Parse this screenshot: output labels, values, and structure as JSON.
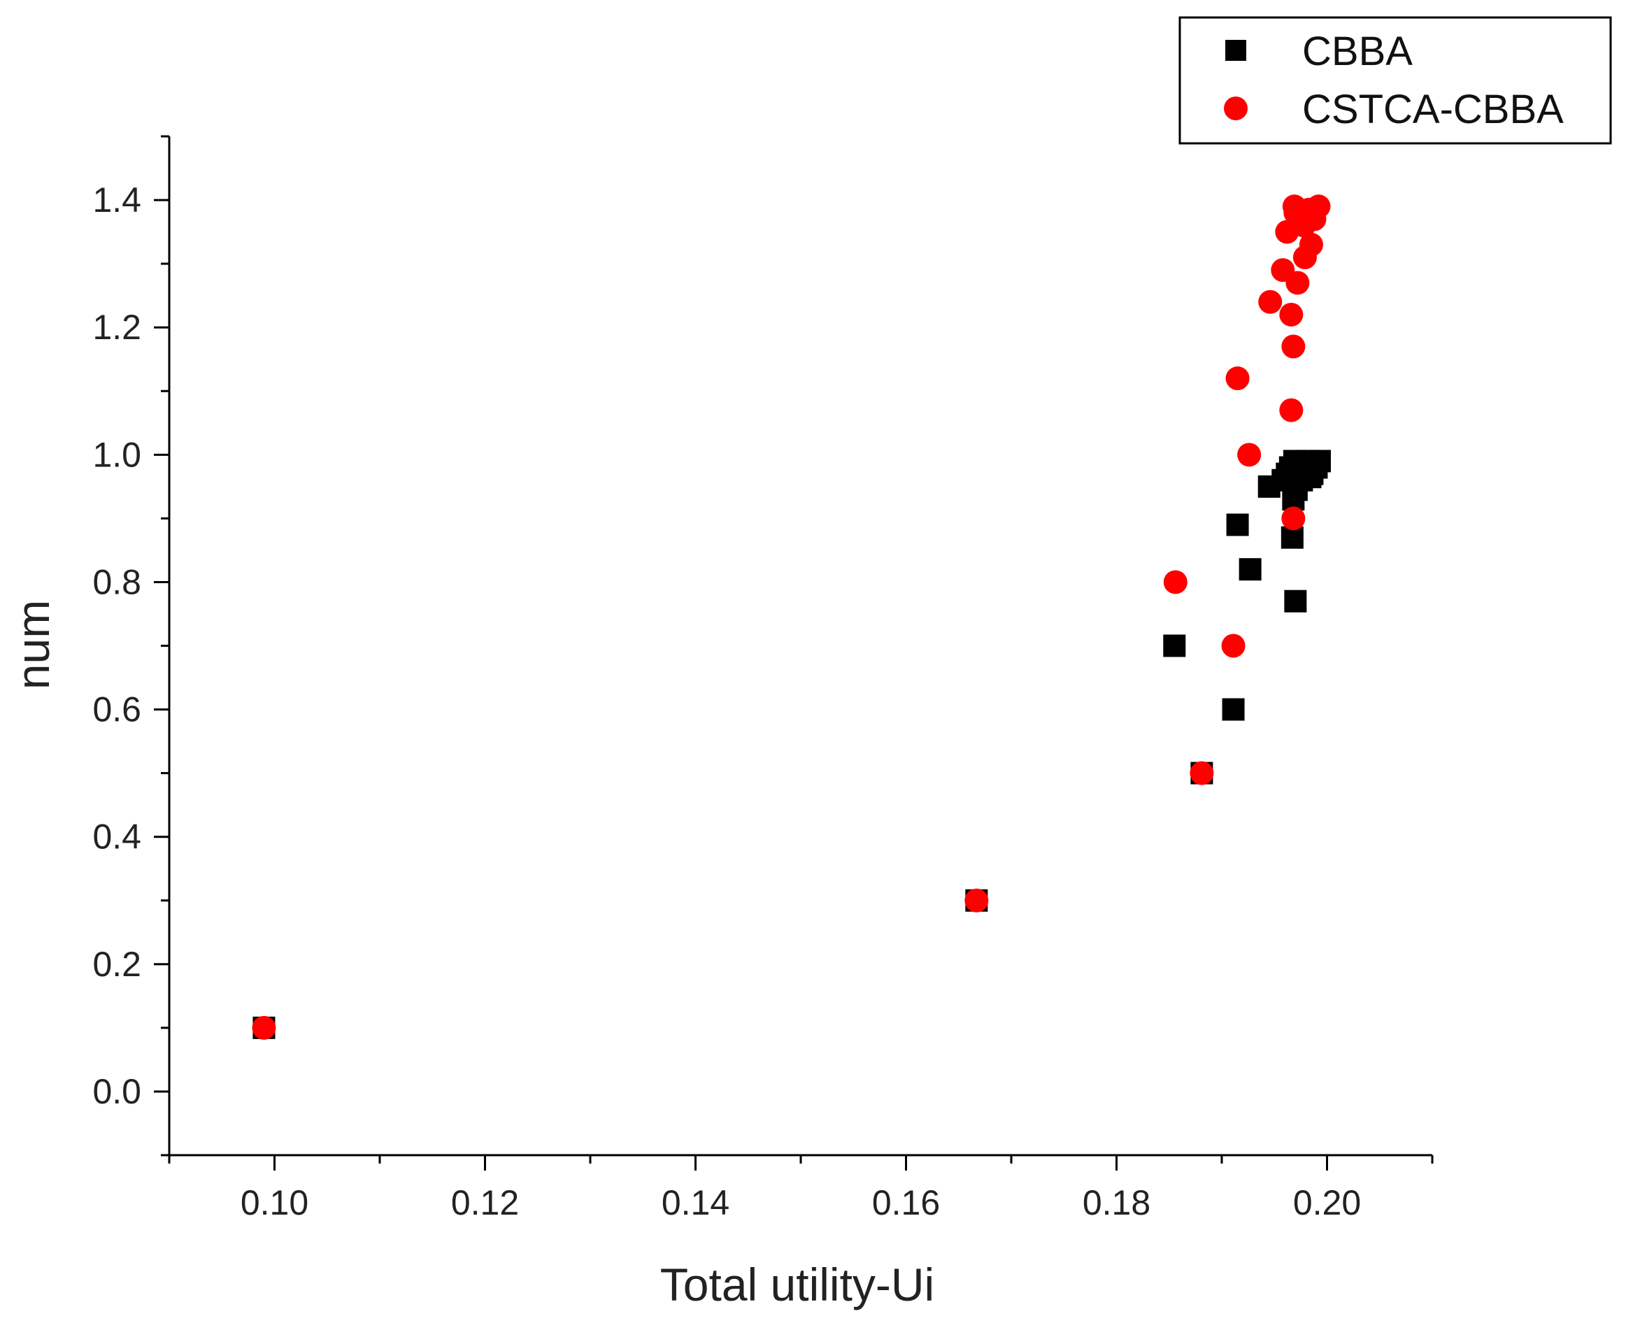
{
  "chart_data": {
    "type": "scatter",
    "title": "",
    "xlabel": "Total utility-Ui",
    "ylabel": "num",
    "xlim": [
      0.09,
      0.21
    ],
    "ylim": [
      -0.1,
      1.5
    ],
    "x_ticks": [
      "0.10",
      "0.12",
      "0.14",
      "0.16",
      "0.18",
      "0.20"
    ],
    "y_ticks": [
      "0.0",
      "0.2",
      "0.4",
      "0.6",
      "0.8",
      "1.0",
      "1.2",
      "1.4"
    ],
    "legend_position": "top-right",
    "grid": false,
    "series": [
      {
        "name": "CBBA",
        "marker": "square",
        "color": "#000000",
        "points": [
          [
            0.099,
            0.1
          ],
          [
            0.1667,
            0.3
          ],
          [
            0.1881,
            0.5
          ],
          [
            0.1911,
            0.6
          ],
          [
            0.1855,
            0.7
          ],
          [
            0.197,
            0.77
          ],
          [
            0.1927,
            0.82
          ],
          [
            0.1967,
            0.87
          ],
          [
            0.1915,
            0.89
          ],
          [
            0.1945,
            0.95
          ],
          [
            0.1958,
            0.96
          ],
          [
            0.1962,
            0.97
          ],
          [
            0.1965,
            0.98
          ],
          [
            0.1969,
            0.99
          ],
          [
            0.1973,
            0.975
          ],
          [
            0.1978,
            0.985
          ],
          [
            0.1982,
            0.99
          ],
          [
            0.1986,
            0.97
          ],
          [
            0.199,
            0.98
          ],
          [
            0.1993,
            0.99
          ],
          [
            0.1968,
            0.93
          ],
          [
            0.1971,
            0.945
          ],
          [
            0.1976,
            0.96
          ],
          [
            0.1984,
            0.965
          ]
        ]
      },
      {
        "name": "CSTCA-CBBA",
        "marker": "circle",
        "color": "#ff0000",
        "points": [
          [
            0.099,
            0.1
          ],
          [
            0.1667,
            0.3
          ],
          [
            0.1881,
            0.5
          ],
          [
            0.1911,
            0.7
          ],
          [
            0.1856,
            0.8
          ],
          [
            0.1968,
            0.9
          ],
          [
            0.1926,
            1.0
          ],
          [
            0.1966,
            1.07
          ],
          [
            0.1915,
            1.12
          ],
          [
            0.1968,
            1.17
          ],
          [
            0.1966,
            1.22
          ],
          [
            0.1946,
            1.24
          ],
          [
            0.1972,
            1.27
          ],
          [
            0.1958,
            1.29
          ],
          [
            0.1979,
            1.31
          ],
          [
            0.1985,
            1.33
          ],
          [
            0.1962,
            1.35
          ],
          [
            0.1978,
            1.36
          ],
          [
            0.1988,
            1.37
          ],
          [
            0.197,
            1.38
          ],
          [
            0.1983,
            1.385
          ],
          [
            0.1992,
            1.39
          ],
          [
            0.1969,
            1.39
          ]
        ]
      }
    ]
  }
}
